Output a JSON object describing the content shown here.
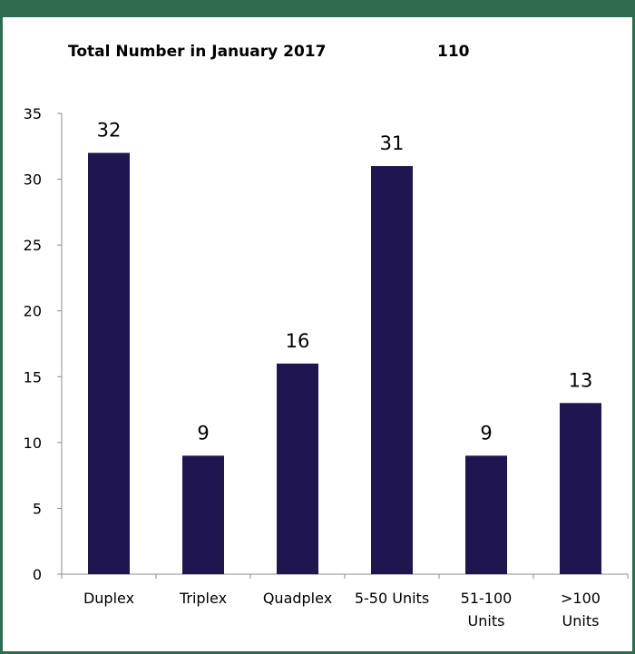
{
  "header": {
    "title": "Total Number in January 2017",
    "total_value": "110"
  },
  "colors": {
    "frame": "#2e6b4f",
    "bar": "#1f1650",
    "axis": "#8c8c8c"
  },
  "chart_data": {
    "type": "bar",
    "title": "Total Number in January 2017",
    "xlabel": "",
    "ylabel": "",
    "categories": [
      [
        "Duplex"
      ],
      [
        "Triplex"
      ],
      [
        "Quadplex"
      ],
      [
        "5-50 Units"
      ],
      [
        "51-100",
        "Units"
      ],
      [
        ">100",
        "Units"
      ]
    ],
    "values": [
      32,
      9,
      16,
      31,
      9,
      13
    ],
    "ylim": [
      0,
      35
    ],
    "yticks": [
      0,
      5,
      10,
      15,
      20,
      25,
      30,
      35
    ],
    "data_labels": true,
    "legend": "none",
    "grid": false
  }
}
